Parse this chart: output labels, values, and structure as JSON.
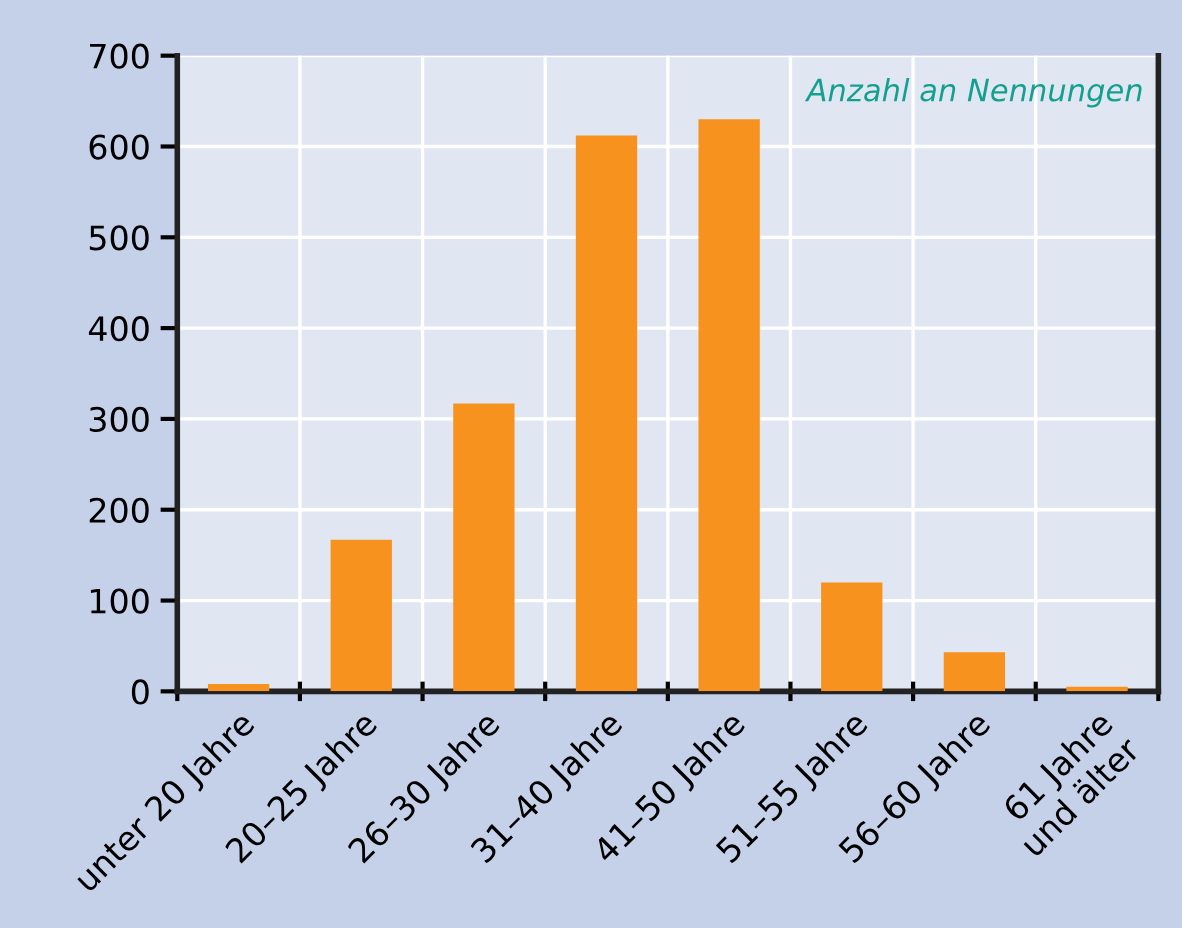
{
  "chart_data": {
    "type": "bar",
    "categories": [
      "unter 20 Jahre",
      "20–25 Jahre",
      "26–30 Jahre",
      "31–40 Jahre",
      "41–50 Jahre",
      "51–55 Jahre",
      "56–60 Jahre",
      "61 Jahre\nund älter"
    ],
    "values": [
      8,
      167,
      317,
      612,
      630,
      120,
      43,
      5
    ],
    "color": "#f7921e",
    "ylim": [
      0,
      700
    ],
    "yticks": [
      0,
      100,
      200,
      300,
      400,
      500,
      600,
      700
    ],
    "grid": true,
    "annotations": [
      "Anzahl an Nennungen"
    ]
  }
}
